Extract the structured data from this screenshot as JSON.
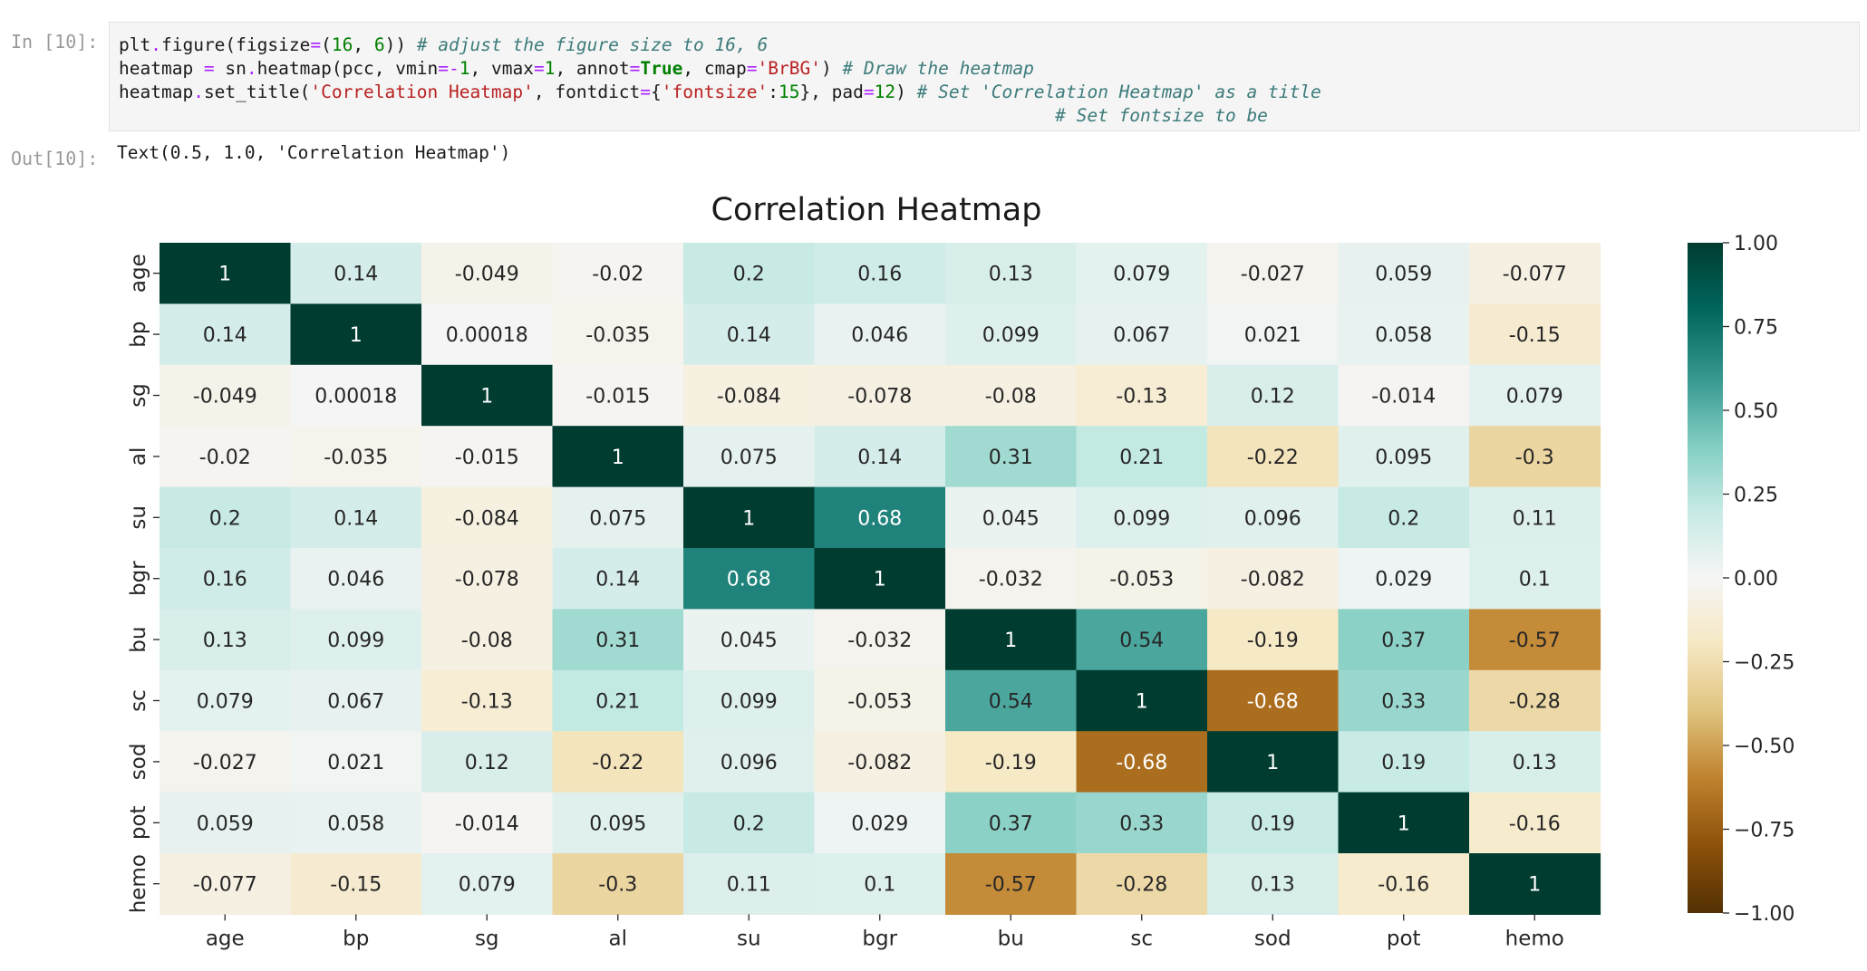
{
  "cell": {
    "in_prompt": "In [10]:",
    "out_prompt": "Out[10]:",
    "code_lines": [
      [
        [
          "plt",
          "n"
        ],
        [
          ".",
          "o"
        ],
        [
          "figure(figsize",
          "n"
        ],
        [
          "=",
          "o"
        ],
        [
          "(",
          "n"
        ],
        [
          "16",
          "num"
        ],
        [
          ", ",
          "n"
        ],
        [
          "6",
          "num"
        ],
        [
          ")) ",
          "n"
        ],
        [
          "# adjust the figure size to 16, 6",
          "c"
        ]
      ],
      [
        [
          "heatmap ",
          "n"
        ],
        [
          "=",
          "o"
        ],
        [
          " sn",
          "n"
        ],
        [
          ".",
          "o"
        ],
        [
          "heatmap(pcc, vmin",
          "n"
        ],
        [
          "=-",
          "o"
        ],
        [
          "1",
          "num"
        ],
        [
          ", vmax",
          "n"
        ],
        [
          "=",
          "o"
        ],
        [
          "1",
          "num"
        ],
        [
          ", annot",
          "n"
        ],
        [
          "=",
          "o"
        ],
        [
          "True",
          "k"
        ],
        [
          ", cmap",
          "n"
        ],
        [
          "=",
          "o"
        ],
        [
          "'BrBG'",
          "s"
        ],
        [
          ") ",
          "n"
        ],
        [
          "# Draw the heatmap",
          "c"
        ]
      ],
      [
        [
          "heatmap",
          "n"
        ],
        [
          ".",
          "o"
        ],
        [
          "set_title(",
          "n"
        ],
        [
          "'Correlation Heatmap'",
          "s"
        ],
        [
          ", fontdict",
          "n"
        ],
        [
          "=",
          "o"
        ],
        [
          "{",
          "n"
        ],
        [
          "'fontsize'",
          "s"
        ],
        [
          ":",
          "n"
        ],
        [
          "15",
          "num"
        ],
        [
          "}, pad",
          "n"
        ],
        [
          "=",
          "o"
        ],
        [
          "12",
          "num"
        ],
        [
          ") ",
          "n"
        ],
        [
          "# Set 'Correlation Heatmap' as a title",
          "c"
        ]
      ],
      [
        [
          "                                                                                        ",
          "n"
        ],
        [
          "# Set fontsize to be",
          "c"
        ]
      ]
    ],
    "output_text": "Text(0.5, 1.0, 'Correlation Heatmap')"
  },
  "colors": {
    "prompt": "#9a9a9a",
    "input_bg": "#f5f5f5",
    "cmap_BrBG": [
      "#543005",
      "#8c510a",
      "#bf812d",
      "#dfc27d",
      "#f6e8c3",
      "#f5f5f5",
      "#c7eae5",
      "#80cdc1",
      "#35978f",
      "#01665e",
      "#003c30"
    ]
  },
  "chart_data": {
    "type": "heatmap",
    "title": "Correlation Heatmap",
    "labels": [
      "age",
      "bp",
      "sg",
      "al",
      "su",
      "bgr",
      "bu",
      "sc",
      "sod",
      "pot",
      "hemo"
    ],
    "values": [
      [
        1,
        0.14,
        -0.049,
        -0.02,
        0.2,
        0.16,
        0.13,
        0.079,
        -0.027,
        0.059,
        -0.077
      ],
      [
        0.14,
        1,
        0.00018,
        -0.035,
        0.14,
        0.046,
        0.099,
        0.067,
        0.021,
        0.058,
        -0.15
      ],
      [
        -0.049,
        0.00018,
        1,
        -0.015,
        -0.084,
        -0.078,
        -0.08,
        -0.13,
        0.12,
        -0.014,
        0.079
      ],
      [
        -0.02,
        -0.035,
        -0.015,
        1,
        0.075,
        0.14,
        0.31,
        0.21,
        -0.22,
        0.095,
        -0.3
      ],
      [
        0.2,
        0.14,
        -0.084,
        0.075,
        1,
        0.68,
        0.045,
        0.099,
        0.096,
        0.2,
        0.11
      ],
      [
        0.16,
        0.046,
        -0.078,
        0.14,
        0.68,
        1,
        -0.032,
        -0.053,
        -0.082,
        0.029,
        0.1
      ],
      [
        0.13,
        0.099,
        -0.08,
        0.31,
        0.045,
        -0.032,
        1,
        0.54,
        -0.19,
        0.37,
        -0.57
      ],
      [
        0.079,
        0.067,
        -0.13,
        0.21,
        0.099,
        -0.053,
        0.54,
        1,
        -0.68,
        0.33,
        -0.28
      ],
      [
        -0.027,
        0.021,
        0.12,
        -0.22,
        0.096,
        -0.082,
        -0.19,
        -0.68,
        1,
        0.19,
        0.13
      ],
      [
        0.059,
        0.058,
        -0.014,
        0.095,
        0.2,
        0.029,
        0.37,
        0.33,
        0.19,
        1,
        -0.16
      ],
      [
        -0.077,
        -0.15,
        0.079,
        -0.3,
        0.11,
        0.1,
        -0.57,
        -0.28,
        0.13,
        -0.16,
        1
      ]
    ],
    "annotations": [
      [
        "1",
        "0.14",
        "-0.049",
        "-0.02",
        "0.2",
        "0.16",
        "0.13",
        "0.079",
        "-0.027",
        "0.059",
        "-0.077"
      ],
      [
        "0.14",
        "1",
        "0.00018",
        "-0.035",
        "0.14",
        "0.046",
        "0.099",
        "0.067",
        "0.021",
        "0.058",
        "-0.15"
      ],
      [
        "-0.049",
        "0.00018",
        "1",
        "-0.015",
        "-0.084",
        "-0.078",
        "-0.08",
        "-0.13",
        "0.12",
        "-0.014",
        "0.079"
      ],
      [
        "-0.02",
        "-0.035",
        "-0.015",
        "1",
        "0.075",
        "0.14",
        "0.31",
        "0.21",
        "-0.22",
        "0.095",
        "-0.3"
      ],
      [
        "0.2",
        "0.14",
        "-0.084",
        "0.075",
        "1",
        "0.68",
        "0.045",
        "0.099",
        "0.096",
        "0.2",
        "0.11"
      ],
      [
        "0.16",
        "0.046",
        "-0.078",
        "0.14",
        "0.68",
        "1",
        "-0.032",
        "-0.053",
        "-0.082",
        "0.029",
        "0.1"
      ],
      [
        "0.13",
        "0.099",
        "-0.08",
        "0.31",
        "0.045",
        "-0.032",
        "1",
        "0.54",
        "-0.19",
        "0.37",
        "-0.57"
      ],
      [
        "0.079",
        "0.067",
        "-0.13",
        "0.21",
        "0.099",
        "-0.053",
        "0.54",
        "1",
        "-0.68",
        "0.33",
        "-0.28"
      ],
      [
        "-0.027",
        "0.021",
        "0.12",
        "-0.22",
        "0.096",
        "-0.082",
        "-0.19",
        "-0.68",
        "1",
        "0.19",
        "0.13"
      ],
      [
        "0.059",
        "0.058",
        "-0.014",
        "0.095",
        "0.2",
        "0.029",
        "0.37",
        "0.33",
        "0.19",
        "1",
        "-0.16"
      ],
      [
        "-0.077",
        "-0.15",
        "0.079",
        "-0.3",
        "0.11",
        "0.1",
        "-0.57",
        "-0.28",
        "0.13",
        "-0.16",
        "1"
      ]
    ],
    "vmin": -1,
    "vmax": 1,
    "cmap": "BrBG",
    "colorbar": {
      "ticks": [
        1,
        0.75,
        0.5,
        0.25,
        0,
        -0.25,
        -0.5,
        -0.75,
        -1
      ],
      "tick_labels": [
        "1.00",
        "0.75",
        "0.50",
        "0.25",
        "0.00",
        "−0.25",
        "−0.50",
        "−0.75",
        "−1.00"
      ]
    }
  }
}
